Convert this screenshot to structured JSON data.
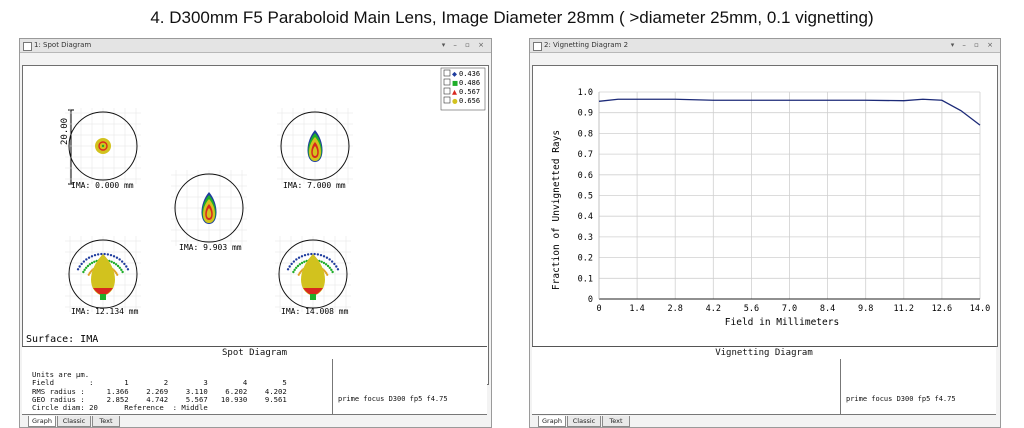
{
  "page_title": "4. D300mm F5 Paraboloid Main Lens, Image Diameter 28mm ( >diameter 25mm, 0.1 vignetting)",
  "left_window": {
    "title": "1: Spot Diagram",
    "controls": "▾ – ▫ ×",
    "scale_label": "20.00",
    "field_labels": [
      "IMA: 0.000 mm",
      "IMA: 9.903 mm",
      "IMA: 7.000 mm",
      "IMA: 12.134 mm",
      "IMA: 14.008 mm"
    ],
    "legend": [
      {
        "label": "0.436",
        "color": "#1f3c9e",
        "marker": "◆"
      },
      {
        "label": "0.486",
        "color": "#1fae2a",
        "marker": "■"
      },
      {
        "label": "0.567",
        "color": "#d8281f",
        "marker": "▲"
      },
      {
        "label": "0.656",
        "color": "#d2c21e",
        "marker": "●"
      }
    ],
    "surface": "Surface: IMA",
    "caption": "Spot Diagram",
    "units_text": "Units are µm.\nField        :       1        2        3        4        5\nRMS radius :     1.366    2.269    3.110    6.202    4.202\nGEO radius :     2.852    4.742    5.567   10.930    9.561\nCircle diam: 20      Reference  : Middle",
    "note": "prime focus D300 fp5 f4.75",
    "tabs": [
      "Graph",
      "Classic",
      "Text"
    ]
  },
  "right_window": {
    "title": "2: Vignetting Diagram 2",
    "controls": "▾ – ▫ ×",
    "caption": "Vignetting Diagram",
    "note": "prime focus D300 fp5 f4.75",
    "tabs": [
      "Graph",
      "Classic",
      "Text"
    ]
  },
  "chart_data": {
    "type": "line",
    "title": "",
    "xlabel": "Field in Millimeters",
    "ylabel": "Fraction of Unvignetted Rays",
    "xlim": [
      0,
      14.0
    ],
    "ylim": [
      0,
      1.0
    ],
    "xticks": [
      "0",
      "1.4",
      "2.8",
      "4.2",
      "5.6",
      "7.0",
      "8.4",
      "9.8",
      "11.2",
      "12.6",
      "14.0"
    ],
    "yticks": [
      "1.0",
      "0.9",
      "0.8",
      "0.7",
      "0.6",
      "0.5",
      "0.4",
      "0.3",
      "0.2",
      "0.1",
      "0"
    ],
    "grid": true,
    "line_color": "#1c2a78",
    "x": [
      0,
      0.7,
      1.4,
      2.8,
      4.2,
      5.6,
      7.0,
      8.4,
      9.8,
      11.2,
      11.9,
      12.6,
      13.3,
      14.0
    ],
    "y": [
      0.955,
      0.965,
      0.965,
      0.965,
      0.96,
      0.96,
      0.96,
      0.96,
      0.96,
      0.958,
      0.965,
      0.96,
      0.91,
      0.84
    ]
  }
}
